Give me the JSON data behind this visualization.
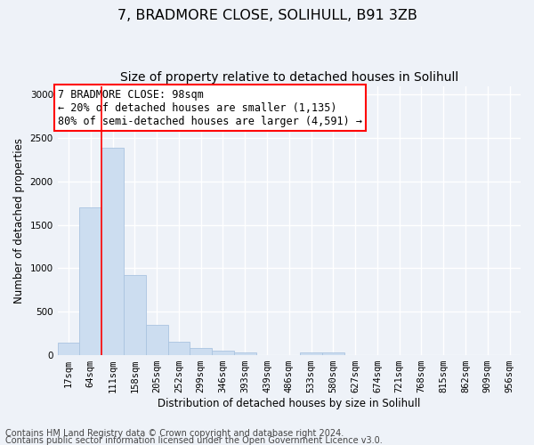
{
  "title": "7, BRADMORE CLOSE, SOLIHULL, B91 3ZB",
  "subtitle": "Size of property relative to detached houses in Solihull",
  "xlabel": "Distribution of detached houses by size in Solihull",
  "ylabel": "Number of detached properties",
  "bar_color": "#ccddf0",
  "bar_edge_color": "#aac4e0",
  "categories": [
    "17sqm",
    "64sqm",
    "111sqm",
    "158sqm",
    "205sqm",
    "252sqm",
    "299sqm",
    "346sqm",
    "393sqm",
    "439sqm",
    "486sqm",
    "533sqm",
    "580sqm",
    "627sqm",
    "674sqm",
    "721sqm",
    "768sqm",
    "815sqm",
    "862sqm",
    "909sqm",
    "956sqm"
  ],
  "values": [
    140,
    1700,
    2390,
    920,
    350,
    155,
    82,
    47,
    30,
    0,
    0,
    28,
    28,
    0,
    0,
    0,
    0,
    0,
    0,
    0,
    0
  ],
  "ylim": [
    0,
    3100
  ],
  "yticks": [
    0,
    500,
    1000,
    1500,
    2000,
    2500,
    3000
  ],
  "red_line_x": 1.5,
  "annotation_line1": "7 BRADMORE CLOSE: 98sqm",
  "annotation_line2": "← 20% of detached houses are smaller (1,135)",
  "annotation_line3": "80% of semi-detached houses are larger (4,591) →",
  "footer_line1": "Contains HM Land Registry data © Crown copyright and database right 2024.",
  "footer_line2": "Contains public sector information licensed under the Open Government Licence v3.0.",
  "background_color": "#eef2f8",
  "plot_bg_color": "#eef2f8",
  "grid_color": "#ffffff",
  "title_fontsize": 11.5,
  "subtitle_fontsize": 10,
  "axis_label_fontsize": 8.5,
  "tick_fontsize": 7.5,
  "annotation_fontsize": 8.5,
  "footer_fontsize": 7
}
